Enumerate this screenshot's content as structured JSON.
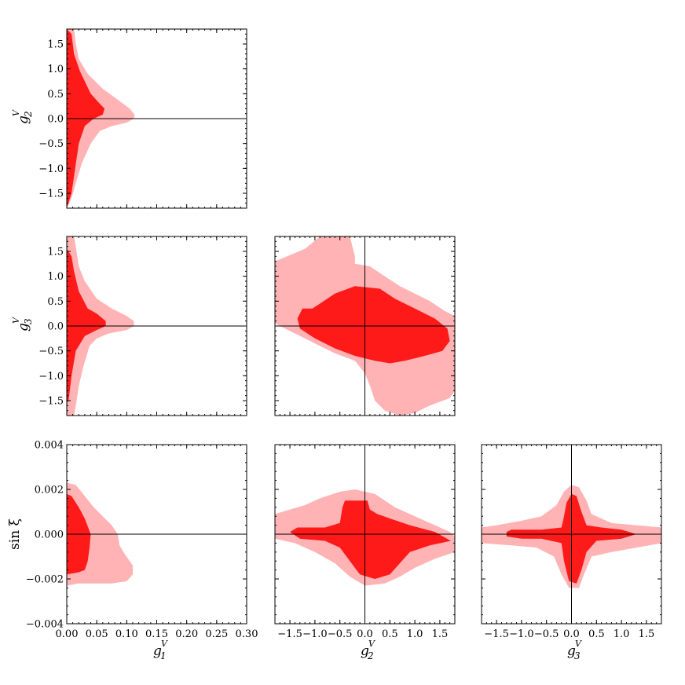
{
  "chart_data": {
    "type": "corner",
    "colors": {
      "region_68": "#ff1a1a",
      "region_95": "#ffb3b5",
      "frame": "#000000"
    },
    "variables": {
      "g1V": {
        "symbol": "g",
        "sub": "1",
        "sup": "V",
        "range": [
          0.0,
          0.3
        ]
      },
      "g2V": {
        "symbol": "g",
        "sub": "2",
        "sup": "V",
        "range": [
          -1.8,
          1.8
        ]
      },
      "g3V": {
        "symbol": "g",
        "sub": "3",
        "sup": "V",
        "range": [
          -1.8,
          1.8
        ]
      },
      "sinxi": {
        "label": "sin ξ",
        "range": [
          -0.004,
          0.004
        ]
      }
    },
    "tick_sets": {
      "g1": {
        "values": [
          0.0,
          0.05,
          0.1,
          0.15,
          0.2,
          0.25,
          0.3
        ],
        "labels": [
          "0.00",
          "0.05",
          "0.10",
          "0.15",
          "0.20",
          "0.25",
          "0.30"
        ]
      },
      "g_sym": {
        "values": [
          -1.5,
          -1.0,
          -0.5,
          0.0,
          0.5,
          1.0,
          1.5
        ],
        "labels": [
          "−1.5",
          "−1.0",
          "−0.5",
          "0.0",
          "0.5",
          "1.0",
          "1.5"
        ]
      },
      "sinxi": {
        "values": [
          -0.004,
          -0.002,
          0.0,
          0.002,
          0.004
        ],
        "labels": [
          "−0.004",
          "−0.002",
          "0.000",
          "0.002",
          "0.004"
        ]
      }
    },
    "panels": [
      {
        "id": "g1-g2",
        "x": "g1V",
        "y": "g2V",
        "row": 0,
        "col": 0,
        "show_xticklabels": false,
        "show_yticklabels": true,
        "hlines": [
          0.0
        ],
        "vlines": [],
        "contour_95": [
          [
            0,
            1.8
          ],
          [
            0.012,
            1.8
          ],
          [
            0.015,
            1.5
          ],
          [
            0.02,
            1.2
          ],
          [
            0.035,
            0.9
          ],
          [
            0.06,
            0.6
          ],
          [
            0.085,
            0.38
          ],
          [
            0.105,
            0.2
          ],
          [
            0.113,
            0.08
          ],
          [
            0.112,
            0.0
          ],
          [
            0.1,
            -0.08
          ],
          [
            0.075,
            -0.15
          ],
          [
            0.055,
            -0.25
          ],
          [
            0.04,
            -0.5
          ],
          [
            0.025,
            -0.9
          ],
          [
            0.015,
            -1.3
          ],
          [
            0.008,
            -1.6
          ],
          [
            0.0,
            -1.8
          ]
        ],
        "contour_68": [
          [
            0,
            1.8
          ],
          [
            0.008,
            1.7
          ],
          [
            0.012,
            1.3
          ],
          [
            0.022,
            0.95
          ],
          [
            0.04,
            0.5
          ],
          [
            0.055,
            0.3
          ],
          [
            0.063,
            0.2
          ],
          [
            0.06,
            0.08
          ],
          [
            0.045,
            0.0
          ],
          [
            0.03,
            -0.15
          ],
          [
            0.02,
            -0.5
          ],
          [
            0.014,
            -1.0
          ],
          [
            0.008,
            -1.5
          ],
          [
            0.0,
            -1.8
          ]
        ]
      },
      {
        "id": "g1-g3",
        "x": "g1V",
        "y": "g3V",
        "row": 1,
        "col": 0,
        "show_xticklabels": false,
        "show_yticklabels": true,
        "hlines": [
          0.0
        ],
        "vlines": [],
        "contour_95": [
          [
            0,
            1.8
          ],
          [
            0.012,
            1.8
          ],
          [
            0.015,
            1.6
          ],
          [
            0.02,
            1.2
          ],
          [
            0.03,
            0.9
          ],
          [
            0.05,
            0.55
          ],
          [
            0.075,
            0.35
          ],
          [
            0.1,
            0.2
          ],
          [
            0.112,
            0.1
          ],
          [
            0.112,
            0.0
          ],
          [
            0.1,
            -0.08
          ],
          [
            0.07,
            -0.15
          ],
          [
            0.05,
            -0.25
          ],
          [
            0.038,
            -0.4
          ],
          [
            0.028,
            -0.8
          ],
          [
            0.02,
            -1.2
          ],
          [
            0.015,
            -1.6
          ],
          [
            0.012,
            -1.8
          ],
          [
            0.0,
            -1.8
          ]
        ],
        "contour_68": [
          [
            0,
            1.55
          ],
          [
            0.008,
            1.4
          ],
          [
            0.012,
            1.1
          ],
          [
            0.02,
            0.7
          ],
          [
            0.035,
            0.35
          ],
          [
            0.05,
            0.25
          ],
          [
            0.065,
            0.1
          ],
          [
            0.065,
            0.0
          ],
          [
            0.05,
            -0.08
          ],
          [
            0.03,
            -0.2
          ],
          [
            0.015,
            -0.5
          ],
          [
            0.008,
            -1.0
          ],
          [
            0.003,
            -1.5
          ],
          [
            0.0,
            -1.55
          ]
        ]
      },
      {
        "id": "g2-g3",
        "x": "g2V",
        "y": "g3V",
        "row": 1,
        "col": 1,
        "show_xticklabels": false,
        "show_yticklabels": false,
        "hlines": [
          0.0
        ],
        "vlines": [
          0.0
        ],
        "contour_95": [
          [
            -1.8,
            1.3
          ],
          [
            -1.2,
            1.55
          ],
          [
            -0.9,
            1.8
          ],
          [
            -0.3,
            1.8
          ],
          [
            -0.2,
            1.4
          ],
          [
            -0.2,
            1.25
          ],
          [
            0.1,
            1.2
          ],
          [
            0.4,
            1.0
          ],
          [
            0.7,
            0.8
          ],
          [
            1.0,
            0.65
          ],
          [
            1.3,
            0.5
          ],
          [
            1.6,
            0.3
          ],
          [
            1.8,
            0.2
          ],
          [
            1.8,
            -1.3
          ],
          [
            1.7,
            -1.45
          ],
          [
            1.3,
            -1.6
          ],
          [
            1.0,
            -1.75
          ],
          [
            0.7,
            -1.8
          ],
          [
            0.4,
            -1.7
          ],
          [
            0.2,
            -1.5
          ],
          [
            0.1,
            -1.2
          ],
          [
            0.0,
            -0.95
          ],
          [
            -0.2,
            -0.7
          ],
          [
            -0.6,
            -0.55
          ],
          [
            -1.0,
            -0.35
          ],
          [
            -1.4,
            -0.15
          ],
          [
            -1.8,
            0.05
          ]
        ],
        "contour_68": [
          [
            -1.35,
            0.15
          ],
          [
            -1.25,
            0.35
          ],
          [
            -1.05,
            0.35
          ],
          [
            -0.9,
            0.45
          ],
          [
            -0.6,
            0.65
          ],
          [
            -0.2,
            0.8
          ],
          [
            0.3,
            0.75
          ],
          [
            0.6,
            0.55
          ],
          [
            1.0,
            0.35
          ],
          [
            1.4,
            0.15
          ],
          [
            1.65,
            -0.05
          ],
          [
            1.7,
            -0.3
          ],
          [
            1.55,
            -0.5
          ],
          [
            1.2,
            -0.6
          ],
          [
            0.8,
            -0.7
          ],
          [
            0.5,
            -0.75
          ],
          [
            0.2,
            -0.7
          ],
          [
            -0.2,
            -0.6
          ],
          [
            -0.6,
            -0.45
          ],
          [
            -1.0,
            -0.25
          ],
          [
            -1.3,
            -0.05
          ]
        ]
      },
      {
        "id": "g1-sinxi",
        "x": "g1V",
        "y": "sinxi",
        "row": 2,
        "col": 0,
        "show_xticklabels": true,
        "show_yticklabels": true,
        "hlines": [
          0.0
        ],
        "vlines": [],
        "contour_95": [
          [
            0,
            0.0023
          ],
          [
            0.015,
            0.0022
          ],
          [
            0.03,
            0.0017
          ],
          [
            0.045,
            0.0012
          ],
          [
            0.06,
            0.0008
          ],
          [
            0.075,
            0.0004
          ],
          [
            0.085,
            0.0
          ],
          [
            0.088,
            -0.0005
          ],
          [
            0.097,
            -0.0009
          ],
          [
            0.11,
            -0.0014
          ],
          [
            0.11,
            -0.0018
          ],
          [
            0.1,
            -0.0021
          ],
          [
            0.075,
            -0.0022
          ],
          [
            0.05,
            -0.0022
          ],
          [
            0.02,
            -0.0022
          ],
          [
            0.0,
            -0.0023
          ]
        ],
        "contour_68": [
          [
            0,
            0.0018
          ],
          [
            0.008,
            0.0017
          ],
          [
            0.02,
            0.0012
          ],
          [
            0.03,
            0.0007
          ],
          [
            0.04,
            0.0
          ],
          [
            0.038,
            -0.0006
          ],
          [
            0.035,
            -0.0012
          ],
          [
            0.03,
            -0.0016
          ],
          [
            0.02,
            -0.0017
          ],
          [
            0.0,
            -0.0018
          ]
        ]
      },
      {
        "id": "g2-sinxi",
        "x": "g2V",
        "y": "sinxi",
        "row": 2,
        "col": 1,
        "show_xticklabels": true,
        "show_yticklabels": false,
        "hlines": [
          0.0
        ],
        "vlines": [
          0.0
        ],
        "contour_95": [
          [
            -1.8,
            0.0009
          ],
          [
            -1.5,
            0.0011
          ],
          [
            -1.2,
            0.0013
          ],
          [
            -0.9,
            0.0016
          ],
          [
            -0.5,
            0.0019
          ],
          [
            -0.2,
            0.002
          ],
          [
            0.2,
            0.0018
          ],
          [
            0.6,
            0.0012
          ],
          [
            1.0,
            0.0008
          ],
          [
            1.4,
            0.0004
          ],
          [
            1.7,
            0.0001
          ],
          [
            1.8,
            -0.0001
          ],
          [
            1.8,
            -0.0008
          ],
          [
            1.4,
            -0.0011
          ],
          [
            1.0,
            -0.0015
          ],
          [
            0.7,
            -0.0019
          ],
          [
            0.4,
            -0.0022
          ],
          [
            0.0,
            -0.0023
          ],
          [
            -0.3,
            -0.0019
          ],
          [
            -0.6,
            -0.0013
          ],
          [
            -1.0,
            -0.0008
          ],
          [
            -1.4,
            -0.0004
          ],
          [
            -1.8,
            -0.0002
          ]
        ],
        "contour_68": [
          [
            -1.5,
            0.0001
          ],
          [
            -1.35,
            0.0003
          ],
          [
            -0.8,
            0.0003
          ],
          [
            -0.5,
            0.0005
          ],
          [
            -0.45,
            0.0012
          ],
          [
            -0.4,
            0.0015
          ],
          [
            -0.2,
            0.0015
          ],
          [
            0.05,
            0.0015
          ],
          [
            0.1,
            0.0011
          ],
          [
            0.25,
            0.0009
          ],
          [
            0.5,
            0.0007
          ],
          [
            0.9,
            0.0004
          ],
          [
            1.4,
            0.0001
          ],
          [
            1.72,
            -0.0003
          ],
          [
            1.3,
            -0.0005
          ],
          [
            0.9,
            -0.0008
          ],
          [
            0.7,
            -0.0013
          ],
          [
            0.5,
            -0.0018
          ],
          [
            0.2,
            -0.002
          ],
          [
            -0.1,
            -0.0018
          ],
          [
            -0.3,
            -0.0012
          ],
          [
            -0.5,
            -0.0006
          ],
          [
            -0.8,
            -0.0003
          ],
          [
            -1.3,
            -0.0002
          ]
        ]
      },
      {
        "id": "g3-sinxi",
        "x": "g3V",
        "y": "sinxi",
        "row": 2,
        "col": 2,
        "show_xticklabels": true,
        "show_yticklabels": false,
        "hlines": [
          0.0
        ],
        "vlines": [
          0.0
        ],
        "contour_95": [
          [
            -1.8,
            0.0003
          ],
          [
            -1.5,
            0.0004
          ],
          [
            -1.0,
            0.0006
          ],
          [
            -0.6,
            0.0008
          ],
          [
            -0.3,
            0.0013
          ],
          [
            -0.15,
            0.0019
          ],
          [
            0.0,
            0.0022
          ],
          [
            0.15,
            0.0021
          ],
          [
            0.3,
            0.0015
          ],
          [
            0.4,
            0.0009
          ],
          [
            0.8,
            0.0005
          ],
          [
            1.3,
            0.0004
          ],
          [
            1.8,
            0.0003
          ],
          [
            1.8,
            -0.0004
          ],
          [
            1.3,
            -0.0006
          ],
          [
            0.8,
            -0.0008
          ],
          [
            0.4,
            -0.001
          ],
          [
            0.25,
            -0.0018
          ],
          [
            0.15,
            -0.0024
          ],
          [
            -0.05,
            -0.0024
          ],
          [
            -0.2,
            -0.0018
          ],
          [
            -0.35,
            -0.001
          ],
          [
            -0.7,
            -0.0006
          ],
          [
            -1.2,
            -0.0005
          ],
          [
            -1.8,
            -0.0004
          ]
        ],
        "contour_68": [
          [
            -1.3,
            0.0001
          ],
          [
            -1.2,
            0.0002
          ],
          [
            -0.6,
            0.0002
          ],
          [
            -0.2,
            0.0003
          ],
          [
            -0.15,
            0.0008
          ],
          [
            -0.1,
            0.0014
          ],
          [
            0.0,
            0.0018
          ],
          [
            0.1,
            0.0017
          ],
          [
            0.2,
            0.001
          ],
          [
            0.3,
            0.0004
          ],
          [
            0.6,
            0.0003
          ],
          [
            1.0,
            0.0002
          ],
          [
            1.3,
            0.0
          ],
          [
            1.0,
            -0.0002
          ],
          [
            0.5,
            -0.0003
          ],
          [
            0.3,
            -0.0008
          ],
          [
            0.2,
            -0.0016
          ],
          [
            0.1,
            -0.0022
          ],
          [
            -0.05,
            -0.0021
          ],
          [
            -0.15,
            -0.0012
          ],
          [
            -0.2,
            -0.0004
          ],
          [
            -0.6,
            -0.0002
          ],
          [
            -1.0,
            -0.0002
          ],
          [
            -1.3,
            -0.0001
          ]
        ]
      }
    ]
  }
}
